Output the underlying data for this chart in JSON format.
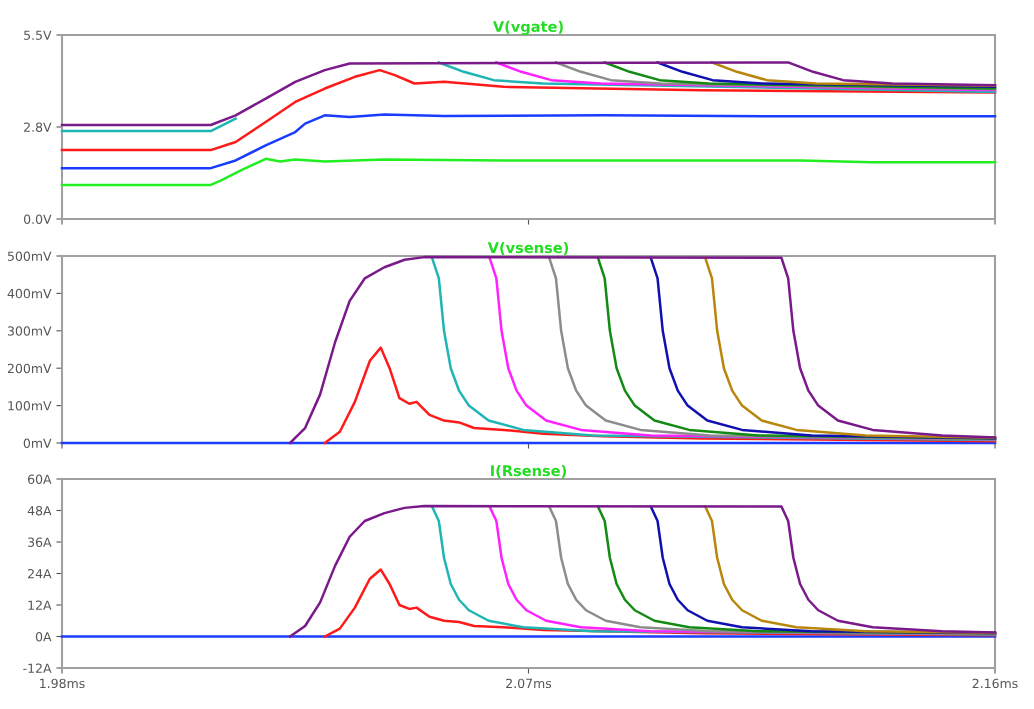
{
  "chart_data": [
    {
      "type": "line",
      "title": "V(vgate)",
      "xlim": [
        1.98,
        2.16
      ],
      "xticks": [
        {
          "value": 1.98,
          "label": null
        },
        {
          "value": 2.07,
          "label": null
        },
        {
          "value": 2.16,
          "label": null
        }
      ],
      "ylim": [
        0,
        5.5
      ],
      "yticks": [
        {
          "value": 0,
          "label": "0.0V"
        },
        {
          "value": 2.75,
          "label": "2.8V"
        },
        {
          "value": 5.5,
          "label": "5.5V"
        }
      ],
      "tick_labels": "y",
      "grid": false,
      "legend": false,
      "series": [
        {
          "color": "#22ee22",
          "x": [
            1.98,
            2.0087,
            2.0106,
            2.0145,
            2.0193,
            2.0221,
            2.025,
            2.0307,
            2.0422,
            2.0652,
            2.1227,
            2.1361,
            2.16
          ],
          "values": [
            1.02,
            1.02,
            1.15,
            1.45,
            1.8,
            1.72,
            1.78,
            1.72,
            1.78,
            1.75,
            1.75,
            1.7,
            1.7
          ]
        },
        {
          "color": "#1a3cff",
          "x": [
            1.98,
            2.0087,
            2.0135,
            2.0193,
            2.025,
            2.0269,
            2.0307,
            2.0355,
            2.0422,
            2.0537,
            2.0844,
            2.1188,
            2.16
          ],
          "values": [
            1.52,
            1.52,
            1.75,
            2.2,
            2.6,
            2.85,
            3.1,
            3.05,
            3.12,
            3.08,
            3.1,
            3.07,
            3.07
          ]
        },
        {
          "color": "#ff1a1a",
          "x": [
            1.98,
            2.0087,
            2.0135,
            2.0193,
            2.025,
            2.0307,
            2.0365,
            2.0413,
            2.0442,
            2.048,
            2.0537,
            2.0652,
            2.1035,
            2.16
          ],
          "values": [
            2.06,
            2.06,
            2.3,
            2.9,
            3.5,
            3.9,
            4.25,
            4.45,
            4.3,
            4.05,
            4.1,
            3.95,
            3.85,
            3.78
          ]
        },
        {
          "color": "#1fb5b5",
          "x": [
            1.98,
            2.0087,
            2.0135,
            2.03,
            2.0527,
            2.0575,
            2.0633,
            2.0728,
            2.16
          ],
          "values": [
            2.63,
            2.63,
            3.0,
            null,
            4.68,
            4.4,
            4.15,
            4.05,
            3.8
          ]
        },
        {
          "color": "#ff22ff",
          "x": [
            2.0638,
            2.0686,
            2.0744,
            2.0839,
            2.16
          ],
          "values": [
            4.68,
            4.4,
            4.15,
            4.05,
            3.85
          ]
        },
        {
          "color": "#8c8c8c",
          "x": [
            2.0753,
            2.0801,
            2.0859,
            2.0954,
            2.16
          ],
          "values": [
            4.68,
            4.4,
            4.15,
            4.05,
            3.88
          ]
        },
        {
          "color": "#138a13",
          "x": [
            2.0847,
            2.0895,
            2.0953,
            2.1048,
            2.16
          ],
          "values": [
            4.68,
            4.4,
            4.15,
            4.05,
            3.9
          ]
        },
        {
          "color": "#1010b0",
          "x": [
            2.0949,
            2.0997,
            2.1055,
            2.115,
            2.16
          ],
          "values": [
            4.68,
            4.4,
            4.15,
            4.05,
            3.95
          ]
        },
        {
          "color": "#b8860b",
          "x": [
            2.1054,
            2.1102,
            2.116,
            2.1255,
            2.16
          ],
          "values": [
            4.68,
            4.4,
            4.15,
            4.05,
            3.98
          ]
        },
        {
          "color": "#7a1a8a",
          "x": [
            1.98,
            2.0087,
            2.0135,
            2.0193,
            2.025,
            2.0307,
            2.0355,
            2.1201,
            2.1249,
            2.1307,
            2.1402,
            2.16
          ],
          "values": [
            2.81,
            2.81,
            3.1,
            3.6,
            4.1,
            4.45,
            4.65,
            4.68,
            4.4,
            4.15,
            4.05,
            4.0
          ]
        }
      ]
    },
    {
      "type": "line",
      "title": "V(vsense)",
      "xlim": [
        1.98,
        2.16
      ],
      "xticks": [
        {
          "value": 1.98,
          "label": null
        },
        {
          "value": 2.07,
          "label": null
        },
        {
          "value": 2.16,
          "label": null
        }
      ],
      "ylim": [
        0,
        500
      ],
      "yticks": [
        {
          "value": 0,
          "label": "0mV"
        },
        {
          "value": 100,
          "label": "100mV"
        },
        {
          "value": 200,
          "label": "200mV"
        },
        {
          "value": 300,
          "label": "300mV"
        },
        {
          "value": 400,
          "label": "400mV"
        },
        {
          "value": 500,
          "label": "500mV"
        }
      ],
      "tick_labels": "y",
      "grid": false,
      "legend": false,
      "series": [
        {
          "color": "#1a3cff",
          "x": [
            1.98,
            2.16
          ],
          "values": [
            0,
            0
          ]
        },
        {
          "color": "#ff1a1a",
          "x": [
            2.0307,
            2.0336,
            2.0365,
            2.0394,
            2.0415,
            2.0432,
            2.0451,
            2.047,
            2.0484,
            2.0509,
            2.0537,
            2.0566,
            2.0595,
            2.0652,
            2.0729,
            2.0844,
            2.1035,
            2.16
          ],
          "values": [
            0,
            30,
            110,
            220,
            255,
            200,
            120,
            105,
            110,
            75,
            60,
            55,
            40,
            35,
            25,
            18,
            12,
            5
          ]
        },
        {
          "color": "#1fb5b5",
          "x": [
            2.0514,
            2.0527,
            2.0537,
            2.055,
            2.0566,
            2.0585,
            2.0623,
            2.069,
            2.0824,
            2.16
          ],
          "values": [
            495,
            440,
            300,
            200,
            140,
            100,
            60,
            35,
            20,
            8
          ]
        },
        {
          "color": "#ff22ff",
          "x": [
            2.0625,
            2.0638,
            2.0648,
            2.0661,
            2.0677,
            2.0696,
            2.0734,
            2.0801,
            2.0935,
            2.16
          ],
          "values": [
            495,
            440,
            300,
            200,
            140,
            100,
            60,
            35,
            20,
            10
          ]
        },
        {
          "color": "#8c8c8c",
          "x": [
            2.074,
            2.0753,
            2.0763,
            2.0776,
            2.0792,
            2.0811,
            2.0849,
            2.0916,
            2.105,
            2.16
          ],
          "values": [
            495,
            440,
            300,
            200,
            140,
            100,
            60,
            35,
            20,
            10
          ]
        },
        {
          "color": "#138a13",
          "x": [
            2.0834,
            2.0847,
            2.0857,
            2.087,
            2.0886,
            2.0905,
            2.0943,
            2.101,
            2.1144,
            2.16
          ],
          "values": [
            495,
            440,
            300,
            200,
            140,
            100,
            60,
            35,
            20,
            12
          ]
        },
        {
          "color": "#1010b0",
          "x": [
            2.0936,
            2.0949,
            2.0959,
            2.0972,
            2.0988,
            2.1007,
            2.1045,
            2.1112,
            2.1246,
            2.16
          ],
          "values": [
            495,
            440,
            300,
            200,
            140,
            100,
            60,
            35,
            20,
            13
          ]
        },
        {
          "color": "#b8860b",
          "x": [
            2.1041,
            2.1054,
            2.1064,
            2.1077,
            2.1093,
            2.1112,
            2.115,
            2.1217,
            2.1351,
            2.16
          ],
          "values": [
            495,
            440,
            300,
            200,
            140,
            100,
            60,
            35,
            20,
            14
          ]
        },
        {
          "color": "#7a1a8a",
          "x": [
            2.024,
            2.0269,
            2.0298,
            2.0327,
            2.0355,
            2.0384,
            2.0422,
            2.0461,
            2.0499,
            2.1188,
            2.1201,
            2.1211,
            2.1224,
            2.124,
            2.1259,
            2.1297,
            2.1364,
            2.1498,
            2.16
          ],
          "values": [
            0,
            40,
            130,
            270,
            380,
            440,
            470,
            490,
            497,
            495,
            440,
            300,
            200,
            140,
            100,
            60,
            35,
            20,
            15
          ]
        }
      ]
    },
    {
      "type": "line",
      "title": "I(Rsense)",
      "xlim": [
        1.98,
        2.16
      ],
      "xticks": [
        {
          "value": 1.98,
          "label": "1.98ms"
        },
        {
          "value": 2.07,
          "label": "2.07ms"
        },
        {
          "value": 2.16,
          "label": "2.16ms"
        }
      ],
      "ylim": [
        -12,
        60
      ],
      "yticks": [
        {
          "value": -12,
          "label": "-12A"
        },
        {
          "value": 0,
          "label": "0A"
        },
        {
          "value": 12,
          "label": "12A"
        },
        {
          "value": 24,
          "label": "24A"
        },
        {
          "value": 36,
          "label": "36A"
        },
        {
          "value": 48,
          "label": "48A"
        },
        {
          "value": 60,
          "label": "60A"
        }
      ],
      "grid": false,
      "legend": false,
      "series": [
        {
          "color": "#1a3cff",
          "x": [
            1.98,
            2.16
          ],
          "values": [
            0,
            0
          ]
        },
        {
          "color": "#ff1a1a",
          "x": [
            2.0307,
            2.0336,
            2.0365,
            2.0394,
            2.0415,
            2.0432,
            2.0451,
            2.047,
            2.0484,
            2.0509,
            2.0537,
            2.0566,
            2.0595,
            2.0652,
            2.0729,
            2.1035,
            2.16
          ],
          "values": [
            0,
            3,
            11,
            22,
            25.5,
            20,
            12,
            10.5,
            11,
            7.5,
            6,
            5.5,
            4,
            3.5,
            2.5,
            1.2,
            0.5
          ]
        },
        {
          "color": "#1fb5b5",
          "x": [
            2.0514,
            2.0527,
            2.0537,
            2.055,
            2.0566,
            2.0585,
            2.0623,
            2.069,
            2.0824,
            2.16
          ],
          "values": [
            49.5,
            44,
            30,
            20,
            14,
            10,
            6,
            3.5,
            2,
            0.8
          ]
        },
        {
          "color": "#ff22ff",
          "x": [
            2.0625,
            2.0638,
            2.0648,
            2.0661,
            2.0677,
            2.0696,
            2.0734,
            2.0801,
            2.0935,
            2.16
          ],
          "values": [
            49.5,
            44,
            30,
            20,
            14,
            10,
            6,
            3.5,
            2,
            1
          ]
        },
        {
          "color": "#8c8c8c",
          "x": [
            2.074,
            2.0753,
            2.0763,
            2.0776,
            2.0792,
            2.0811,
            2.0849,
            2.0916,
            2.105,
            2.16
          ],
          "values": [
            49.5,
            44,
            30,
            20,
            14,
            10,
            6,
            3.5,
            2,
            1
          ]
        },
        {
          "color": "#138a13",
          "x": [
            2.0834,
            2.0847,
            2.0857,
            2.087,
            2.0886,
            2.0905,
            2.0943,
            2.101,
            2.1144,
            2.16
          ],
          "values": [
            49.5,
            44,
            30,
            20,
            14,
            10,
            6,
            3.5,
            2,
            1.2
          ]
        },
        {
          "color": "#1010b0",
          "x": [
            2.0936,
            2.0949,
            2.0959,
            2.0972,
            2.0988,
            2.1007,
            2.1045,
            2.1112,
            2.1246,
            2.16
          ],
          "values": [
            49.5,
            44,
            30,
            20,
            14,
            10,
            6,
            3.5,
            2,
            1.3
          ]
        },
        {
          "color": "#b8860b",
          "x": [
            2.1041,
            2.1054,
            2.1064,
            2.1077,
            2.1093,
            2.1112,
            2.115,
            2.1217,
            2.1351,
            2.16
          ],
          "values": [
            49.5,
            44,
            30,
            20,
            14,
            10,
            6,
            3.5,
            2,
            1.4
          ]
        },
        {
          "color": "#7a1a8a",
          "x": [
            2.024,
            2.0269,
            2.0298,
            2.0327,
            2.0355,
            2.0384,
            2.0422,
            2.0461,
            2.0499,
            2.1188,
            2.1201,
            2.1211,
            2.1224,
            2.124,
            2.1259,
            2.1297,
            2.1364,
            2.1498,
            2.16
          ],
          "values": [
            0,
            4,
            13,
            27,
            38,
            44,
            47,
            49,
            49.7,
            49.5,
            44,
            30,
            20,
            14,
            10,
            6,
            3.5,
            2,
            1.5
          ]
        }
      ]
    }
  ]
}
